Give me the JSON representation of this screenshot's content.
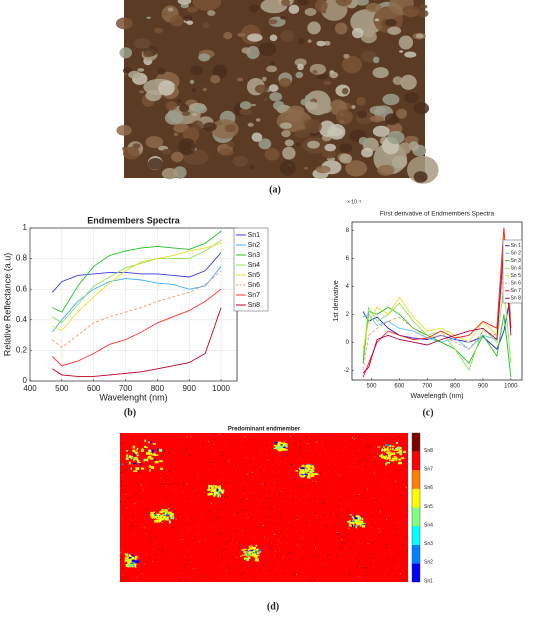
{
  "figure": {
    "panel_labels": [
      "(a)",
      "(b)",
      "(c)",
      "(d)"
    ]
  },
  "chart_data": [
    {
      "type": "line",
      "title": "Endmembers Spectra",
      "x_label": "Wavelenght (nm)",
      "y_label": "Relative Reflectance (a.u)",
      "x": [
        470,
        500,
        550,
        600,
        650,
        700,
        750,
        800,
        850,
        900,
        950,
        1000
      ],
      "xlim": [
        400,
        1050
      ],
      "xticks": [
        400,
        500,
        600,
        700,
        800,
        900,
        1000
      ],
      "ylim": [
        0,
        1
      ],
      "yticks": [
        0,
        0.2,
        0.4,
        0.6,
        0.8,
        1
      ],
      "grid": true,
      "legend": "upper right",
      "series": [
        {
          "name": "Sn1",
          "color": "#3a3ae0",
          "values": [
            0.58,
            0.65,
            0.69,
            0.7,
            0.71,
            0.71,
            0.7,
            0.7,
            0.69,
            0.68,
            0.72,
            0.84
          ]
        },
        {
          "name": "Sn2",
          "color": "#40b0ff",
          "values": [
            0.32,
            0.4,
            0.52,
            0.6,
            0.65,
            0.67,
            0.66,
            0.64,
            0.63,
            0.6,
            0.62,
            0.75
          ]
        },
        {
          "name": "Sn3",
          "color": "#22c022",
          "values": [
            0.48,
            0.45,
            0.62,
            0.75,
            0.82,
            0.85,
            0.87,
            0.88,
            0.87,
            0.86,
            0.9,
            0.98
          ]
        },
        {
          "name": "Sn4",
          "color": "#8fe05a",
          "values": [
            0.42,
            0.38,
            0.5,
            0.62,
            0.68,
            0.74,
            0.77,
            0.8,
            0.8,
            0.8,
            0.85,
            0.92
          ]
        },
        {
          "name": "Sn5",
          "color": "#e6e030",
          "values": [
            0.36,
            0.33,
            0.45,
            0.55,
            0.64,
            0.72,
            0.78,
            0.8,
            0.82,
            0.85,
            0.87,
            0.9
          ]
        },
        {
          "name": "Sn6",
          "color": "#f09870",
          "dash": true,
          "values": [
            0.27,
            0.22,
            0.3,
            0.38,
            0.42,
            0.45,
            0.48,
            0.52,
            0.55,
            0.58,
            0.63,
            0.72
          ]
        },
        {
          "name": "Sn7",
          "color": "#ff3030",
          "values": [
            0.16,
            0.1,
            0.13,
            0.18,
            0.24,
            0.27,
            0.32,
            0.38,
            0.42,
            0.46,
            0.52,
            0.6
          ]
        },
        {
          "name": "Sn8",
          "color": "#c00020",
          "values": [
            0.08,
            0.04,
            0.03,
            0.03,
            0.04,
            0.05,
            0.06,
            0.08,
            0.1,
            0.12,
            0.18,
            0.48
          ]
        }
      ]
    },
    {
      "type": "line",
      "title": "First derivative of Endmembers Spectra",
      "x_label": "Wavelength (nm)",
      "y_label": "1st derivative",
      "y_exponent": "× 10⁻³",
      "x": [
        470,
        490,
        520,
        560,
        600,
        650,
        700,
        750,
        800,
        850,
        900,
        950,
        975,
        1000
      ],
      "xlim": [
        430,
        1040
      ],
      "xticks": [
        500,
        600,
        700,
        800,
        900,
        1000
      ],
      "ylim": [
        -2.7,
        8.6
      ],
      "yticks": [
        -2,
        0,
        2,
        4,
        6,
        8
      ],
      "grid": false,
      "legend": "upper right",
      "series": [
        {
          "name": "Sn 1",
          "color": "#2020e0",
          "values": [
            2.2,
            1.5,
            1.8,
            1.0,
            0.5,
            0.3,
            0.2,
            0.5,
            0.2,
            0.0,
            0.4,
            -0.5,
            0.8,
            3.5
          ]
        },
        {
          "name": "Sn 2",
          "color": "#60c0ff",
          "values": [
            1.8,
            2.0,
            1.2,
            1.5,
            1.0,
            0.8,
            0.3,
            0.0,
            0.3,
            -0.5,
            0.5,
            0.2,
            6.5,
            2.0
          ]
        },
        {
          "name": "Sn 3",
          "color": "#20c020",
          "values": [
            -1.5,
            2.2,
            2.0,
            2.5,
            2.0,
            1.0,
            0.5,
            0.0,
            -0.5,
            -1.5,
            0.5,
            -1.0,
            2.0,
            -2.5
          ]
        },
        {
          "name": "Sn 4",
          "color": "#90e060",
          "values": [
            -1.0,
            2.5,
            1.5,
            2.0,
            2.8,
            1.5,
            0.5,
            0.8,
            -0.5,
            -2.0,
            1.0,
            0.0,
            4.0,
            -1.5
          ]
        },
        {
          "name": "Sn 5",
          "color": "#e8e020",
          "values": [
            -0.5,
            1.5,
            2.5,
            2.0,
            3.2,
            1.8,
            0.8,
            1.0,
            0.5,
            0.0,
            1.5,
            0.5,
            8.0,
            1.5
          ]
        },
        {
          "name": "Sn 6",
          "color": "#f0a070",
          "dash": true,
          "values": [
            -2.0,
            0.5,
            1.0,
            1.5,
            1.8,
            1.0,
            0.3,
            0.5,
            0.0,
            -0.5,
            0.8,
            0.5,
            5.5,
            1.0
          ]
        },
        {
          "name": "Sn 7",
          "color": "#ff2020",
          "values": [
            -2.5,
            -1.5,
            0.0,
            0.8,
            0.5,
            0.2,
            0.3,
            0.8,
            0.3,
            0.5,
            1.5,
            1.0,
            8.2,
            1.0
          ]
        },
        {
          "name": "Sn 8",
          "color": "#b00050",
          "values": [
            -2.2,
            -1.8,
            0.2,
            0.5,
            0.2,
            0.0,
            -0.2,
            0.2,
            0.5,
            0.8,
            1.0,
            0.2,
            7.0,
            0.5
          ]
        }
      ]
    }
  ],
  "map": {
    "title": "Predominant endmember",
    "colorbar": {
      "labels": [
        "Sn1",
        "Sn2",
        "Sn3",
        "Sn4",
        "Sn5",
        "Sn6",
        "Sn7",
        "Sn8"
      ],
      "colors": [
        "#0000ff",
        "#0080ff",
        "#00ffff",
        "#80ff80",
        "#ffff00",
        "#ff8000",
        "#ff0000",
        "#800000"
      ]
    }
  }
}
